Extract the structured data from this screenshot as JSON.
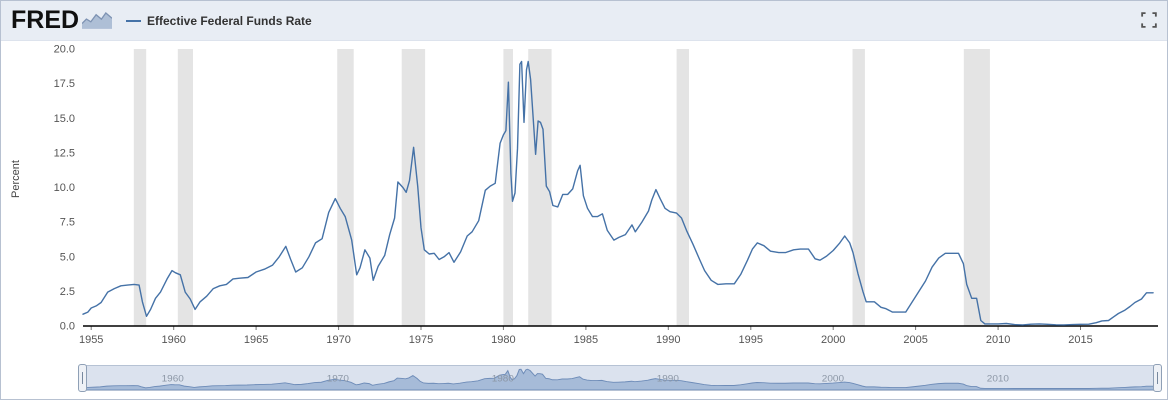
{
  "header": {
    "logo_text": "FRED",
    "legend": {
      "label": "Effective Federal Funds Rate",
      "color": "#4572a7"
    }
  },
  "chart_data": {
    "type": "line",
    "title": "Effective Federal Funds Rate",
    "xlabel": "",
    "ylabel": "Percent",
    "xlim": [
      1954.5,
      2019.7
    ],
    "ylim": [
      0,
      20
    ],
    "grid": false,
    "legend_position": "top",
    "xticks": [
      1955,
      1960,
      1965,
      1970,
      1975,
      1980,
      1985,
      1990,
      1995,
      2000,
      2005,
      2010,
      2015
    ],
    "yticks": [
      0,
      2.5,
      5,
      7.5,
      10,
      12.5,
      15,
      17.5,
      20
    ],
    "ytick_labels": [
      "0.0",
      "2.5",
      "5.0",
      "7.5",
      "10.0",
      "12.5",
      "15.0",
      "17.5",
      "20.0"
    ],
    "recession_color": "#e4e4e4",
    "recessions": [
      [
        1957.58,
        1958.33
      ],
      [
        1960.25,
        1961.17
      ],
      [
        1969.92,
        1970.92
      ],
      [
        1973.83,
        1975.25
      ],
      [
        1980.0,
        1980.58
      ],
      [
        1981.5,
        1982.92
      ],
      [
        1990.5,
        1991.25
      ],
      [
        2001.17,
        2001.92
      ],
      [
        2007.92,
        2009.5
      ]
    ],
    "series": [
      {
        "name": "Effective Federal Funds Rate",
        "color": "#4572a7",
        "points": [
          [
            1954.5,
            0.85
          ],
          [
            1954.8,
            1.0
          ],
          [
            1955.0,
            1.3
          ],
          [
            1955.3,
            1.45
          ],
          [
            1955.6,
            1.7
          ],
          [
            1956.0,
            2.45
          ],
          [
            1956.4,
            2.7
          ],
          [
            1956.8,
            2.9
          ],
          [
            1957.2,
            2.95
          ],
          [
            1957.6,
            3.0
          ],
          [
            1957.9,
            2.95
          ],
          [
            1958.1,
            1.75
          ],
          [
            1958.35,
            0.7
          ],
          [
            1958.6,
            1.2
          ],
          [
            1958.9,
            2.0
          ],
          [
            1959.2,
            2.45
          ],
          [
            1959.6,
            3.4
          ],
          [
            1959.9,
            4.0
          ],
          [
            1960.1,
            3.85
          ],
          [
            1960.4,
            3.7
          ],
          [
            1960.7,
            2.45
          ],
          [
            1961.0,
            1.95
          ],
          [
            1961.3,
            1.2
          ],
          [
            1961.6,
            1.75
          ],
          [
            1962.0,
            2.15
          ],
          [
            1962.4,
            2.7
          ],
          [
            1962.8,
            2.9
          ],
          [
            1963.2,
            3.0
          ],
          [
            1963.6,
            3.4
          ],
          [
            1964.0,
            3.45
          ],
          [
            1964.5,
            3.5
          ],
          [
            1965.0,
            3.9
          ],
          [
            1965.5,
            4.1
          ],
          [
            1966.0,
            4.4
          ],
          [
            1966.4,
            5.0
          ],
          [
            1966.8,
            5.75
          ],
          [
            1967.1,
            4.8
          ],
          [
            1967.4,
            3.9
          ],
          [
            1967.8,
            4.2
          ],
          [
            1968.2,
            5.0
          ],
          [
            1968.6,
            6.0
          ],
          [
            1969.0,
            6.3
          ],
          [
            1969.4,
            8.2
          ],
          [
            1969.8,
            9.2
          ],
          [
            1970.1,
            8.5
          ],
          [
            1970.4,
            7.9
          ],
          [
            1970.8,
            6.2
          ],
          [
            1971.1,
            3.7
          ],
          [
            1971.3,
            4.2
          ],
          [
            1971.6,
            5.5
          ],
          [
            1971.9,
            4.9
          ],
          [
            1972.1,
            3.3
          ],
          [
            1972.4,
            4.3
          ],
          [
            1972.8,
            5.1
          ],
          [
            1973.1,
            6.6
          ],
          [
            1973.4,
            7.8
          ],
          [
            1973.6,
            10.4
          ],
          [
            1973.9,
            10.0
          ],
          [
            1974.1,
            9.65
          ],
          [
            1974.3,
            10.5
          ],
          [
            1974.55,
            12.9
          ],
          [
            1974.8,
            10.1
          ],
          [
            1975.0,
            7.1
          ],
          [
            1975.2,
            5.5
          ],
          [
            1975.5,
            5.2
          ],
          [
            1975.8,
            5.25
          ],
          [
            1976.1,
            4.8
          ],
          [
            1976.4,
            5.0
          ],
          [
            1976.7,
            5.3
          ],
          [
            1977.0,
            4.6
          ],
          [
            1977.4,
            5.35
          ],
          [
            1977.8,
            6.5
          ],
          [
            1978.1,
            6.8
          ],
          [
            1978.5,
            7.6
          ],
          [
            1978.9,
            9.8
          ],
          [
            1979.2,
            10.1
          ],
          [
            1979.5,
            10.3
          ],
          [
            1979.8,
            13.2
          ],
          [
            1980.0,
            13.8
          ],
          [
            1980.15,
            14.1
          ],
          [
            1980.3,
            17.6
          ],
          [
            1980.45,
            11.0
          ],
          [
            1980.55,
            9.0
          ],
          [
            1980.7,
            9.6
          ],
          [
            1980.85,
            12.8
          ],
          [
            1981.0,
            18.9
          ],
          [
            1981.1,
            19.1
          ],
          [
            1981.25,
            14.7
          ],
          [
            1981.4,
            18.5
          ],
          [
            1981.5,
            19.1
          ],
          [
            1981.65,
            17.8
          ],
          [
            1981.8,
            15.1
          ],
          [
            1981.95,
            12.4
          ],
          [
            1982.1,
            14.8
          ],
          [
            1982.25,
            14.7
          ],
          [
            1982.4,
            14.2
          ],
          [
            1982.6,
            10.1
          ],
          [
            1982.8,
            9.7
          ],
          [
            1983.0,
            8.7
          ],
          [
            1983.3,
            8.6
          ],
          [
            1983.6,
            9.5
          ],
          [
            1983.9,
            9.5
          ],
          [
            1984.2,
            9.9
          ],
          [
            1984.5,
            11.2
          ],
          [
            1984.65,
            11.6
          ],
          [
            1984.85,
            9.4
          ],
          [
            1985.1,
            8.5
          ],
          [
            1985.4,
            7.9
          ],
          [
            1985.7,
            7.9
          ],
          [
            1986.0,
            8.1
          ],
          [
            1986.3,
            6.9
          ],
          [
            1986.7,
            6.2
          ],
          [
            1987.0,
            6.4
          ],
          [
            1987.4,
            6.6
          ],
          [
            1987.8,
            7.3
          ],
          [
            1988.0,
            6.8
          ],
          [
            1988.4,
            7.5
          ],
          [
            1988.8,
            8.3
          ],
          [
            1989.0,
            9.1
          ],
          [
            1989.25,
            9.85
          ],
          [
            1989.5,
            9.2
          ],
          [
            1989.8,
            8.5
          ],
          [
            1990.1,
            8.25
          ],
          [
            1990.5,
            8.15
          ],
          [
            1990.8,
            7.8
          ],
          [
            1991.1,
            6.9
          ],
          [
            1991.5,
            5.9
          ],
          [
            1991.9,
            4.8
          ],
          [
            1992.2,
            4.0
          ],
          [
            1992.6,
            3.3
          ],
          [
            1993.0,
            3.0
          ],
          [
            1993.5,
            3.05
          ],
          [
            1994.0,
            3.05
          ],
          [
            1994.4,
            3.75
          ],
          [
            1994.8,
            4.75
          ],
          [
            1995.1,
            5.55
          ],
          [
            1995.4,
            6.0
          ],
          [
            1995.8,
            5.8
          ],
          [
            1996.2,
            5.4
          ],
          [
            1996.7,
            5.3
          ],
          [
            1997.1,
            5.3
          ],
          [
            1997.6,
            5.5
          ],
          [
            1998.0,
            5.55
          ],
          [
            1998.5,
            5.55
          ],
          [
            1998.9,
            4.85
          ],
          [
            1999.2,
            4.75
          ],
          [
            1999.6,
            5.05
          ],
          [
            2000.0,
            5.45
          ],
          [
            2000.4,
            6.0
          ],
          [
            2000.7,
            6.5
          ],
          [
            2001.0,
            6.0
          ],
          [
            2001.2,
            5.3
          ],
          [
            2001.5,
            3.8
          ],
          [
            2001.8,
            2.5
          ],
          [
            2002.0,
            1.75
          ],
          [
            2002.5,
            1.75
          ],
          [
            2002.9,
            1.35
          ],
          [
            2003.2,
            1.25
          ],
          [
            2003.6,
            1.0
          ],
          [
            2004.0,
            1.0
          ],
          [
            2004.4,
            1.0
          ],
          [
            2004.8,
            1.75
          ],
          [
            2005.2,
            2.5
          ],
          [
            2005.6,
            3.25
          ],
          [
            2006.0,
            4.25
          ],
          [
            2006.4,
            4.9
          ],
          [
            2006.8,
            5.25
          ],
          [
            2007.2,
            5.25
          ],
          [
            2007.6,
            5.25
          ],
          [
            2007.9,
            4.5
          ],
          [
            2008.1,
            3.0
          ],
          [
            2008.4,
            2.0
          ],
          [
            2008.7,
            2.0
          ],
          [
            2008.95,
            0.4
          ],
          [
            2009.2,
            0.15
          ],
          [
            2009.6,
            0.15
          ],
          [
            2010.0,
            0.15
          ],
          [
            2010.5,
            0.18
          ],
          [
            2011.0,
            0.1
          ],
          [
            2011.5,
            0.08
          ],
          [
            2012.0,
            0.13
          ],
          [
            2012.5,
            0.15
          ],
          [
            2013.0,
            0.12
          ],
          [
            2013.5,
            0.09
          ],
          [
            2014.0,
            0.08
          ],
          [
            2014.5,
            0.1
          ],
          [
            2015.0,
            0.12
          ],
          [
            2015.5,
            0.13
          ],
          [
            2015.95,
            0.24
          ],
          [
            2016.3,
            0.37
          ],
          [
            2016.7,
            0.4
          ],
          [
            2017.0,
            0.66
          ],
          [
            2017.3,
            0.9
          ],
          [
            2017.7,
            1.15
          ],
          [
            2018.0,
            1.41
          ],
          [
            2018.3,
            1.7
          ],
          [
            2018.7,
            1.95
          ],
          [
            2019.0,
            2.4
          ],
          [
            2019.4,
            2.4
          ]
        ]
      }
    ],
    "slider": {
      "ticks": [
        1960,
        1970,
        1980,
        1990,
        2000,
        2010
      ],
      "area_color": "#8ba6cc",
      "line_color": "#6e8cb8",
      "track_color": "#dbe2ee"
    }
  }
}
